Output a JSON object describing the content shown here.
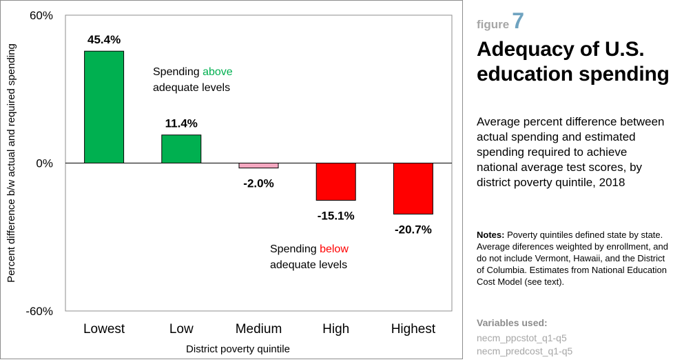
{
  "chart_data": {
    "type": "bar",
    "categories": [
      "Lowest",
      "Low",
      "Medium",
      "High",
      "Highest"
    ],
    "values": [
      45.4,
      11.4,
      -2.0,
      -15.1,
      -20.7
    ],
    "value_labels": [
      "45.4%",
      "11.4%",
      "-2.0%",
      "-15.1%",
      "-20.7%"
    ],
    "bar_colors": [
      "#00b050",
      "#00b050",
      "#f4a7c0",
      "#ff0000",
      "#ff0000"
    ],
    "ylim": [
      -60,
      60
    ],
    "yticks": [
      {
        "value": 60,
        "label": "60%"
      },
      {
        "value": 0,
        "label": "0%"
      },
      {
        "value": -60,
        "label": "-60%"
      }
    ],
    "xlabel": "District poverty quintile",
    "ylabel": "Percent difference b/w actual and required spending",
    "annotations": {
      "above": {
        "prefix": "Spending ",
        "highlight": "above",
        "line2": "adequate levels",
        "color": "#00b050"
      },
      "below": {
        "prefix": "Spending ",
        "highlight": "below",
        "line2": "adequate levels",
        "color": "#ff0000"
      }
    }
  },
  "figure": {
    "word": "figure",
    "number": "7"
  },
  "title": "Adequacy of U.S. education spending",
  "subtitle": "Average percent difference between actual spending and estimated spending required to achieve national average test scores, by district poverty quintile, 2018",
  "notes": {
    "heading": "Notes:",
    "text": " Poverty quintiles defined state by state. Average diferences weighted by enrollment, and do not include Vermont, Hawaii, and the District of Columbia. Estimates from National Education Cost Model (see text)."
  },
  "variables": {
    "heading": "Variables used:",
    "items": [
      "necm_ppcstot_q1-q5",
      "necm_predcost_q1-q5"
    ]
  }
}
